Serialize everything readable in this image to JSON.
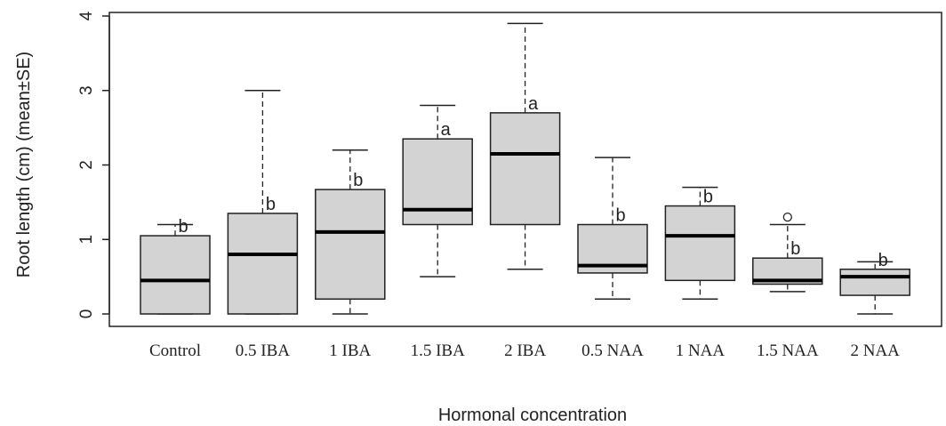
{
  "chart_data": {
    "type": "box",
    "title": "",
    "xlabel": "Hormonal concentration",
    "ylabel": "Root length (cm) (mean±SE)",
    "ylim": [
      0,
      4
    ],
    "yticks": [
      "0",
      "1",
      "2",
      "3",
      "4"
    ],
    "grid": false,
    "legend": "none",
    "colors": {
      "box_fill": "#d3d3d3",
      "stroke": "#222222"
    },
    "categories": [
      "Control",
      "0.5 IBA",
      "1 IBA",
      "1.5 IBA",
      "2 IBA",
      "0.5 NAA",
      "1 NAA",
      "1.5 NAA",
      "2 NAA"
    ],
    "boxes": [
      {
        "min": 0.0,
        "q1": 0.0,
        "median": 0.45,
        "q3": 1.05,
        "max": 1.2,
        "outliers": [],
        "letter": "b"
      },
      {
        "min": 0.0,
        "q1": 0.0,
        "median": 0.8,
        "q3": 1.35,
        "max": 3.0,
        "outliers": [],
        "letter": "b"
      },
      {
        "min": 0.0,
        "q1": 0.2,
        "median": 1.1,
        "q3": 1.67,
        "max": 2.2,
        "outliers": [],
        "letter": "b"
      },
      {
        "min": 0.5,
        "q1": 1.2,
        "median": 1.4,
        "q3": 2.35,
        "max": 2.8,
        "outliers": [],
        "letter": "a"
      },
      {
        "min": 0.6,
        "q1": 1.2,
        "median": 2.15,
        "q3": 2.7,
        "max": 3.9,
        "outliers": [],
        "letter": "a"
      },
      {
        "min": 0.2,
        "q1": 0.55,
        "median": 0.65,
        "q3": 1.2,
        "max": 2.1,
        "outliers": [],
        "letter": "b"
      },
      {
        "min": 0.2,
        "q1": 0.45,
        "median": 1.05,
        "q3": 1.45,
        "max": 1.7,
        "outliers": [],
        "letter": "b"
      },
      {
        "min": 0.3,
        "q1": 0.4,
        "median": 0.45,
        "q3": 0.75,
        "max": 1.2,
        "outliers": [
          1.3
        ],
        "letter": "b"
      },
      {
        "min": 0.0,
        "q1": 0.25,
        "median": 0.5,
        "q3": 0.6,
        "max": 0.7,
        "outliers": [],
        "letter": "b"
      }
    ]
  }
}
